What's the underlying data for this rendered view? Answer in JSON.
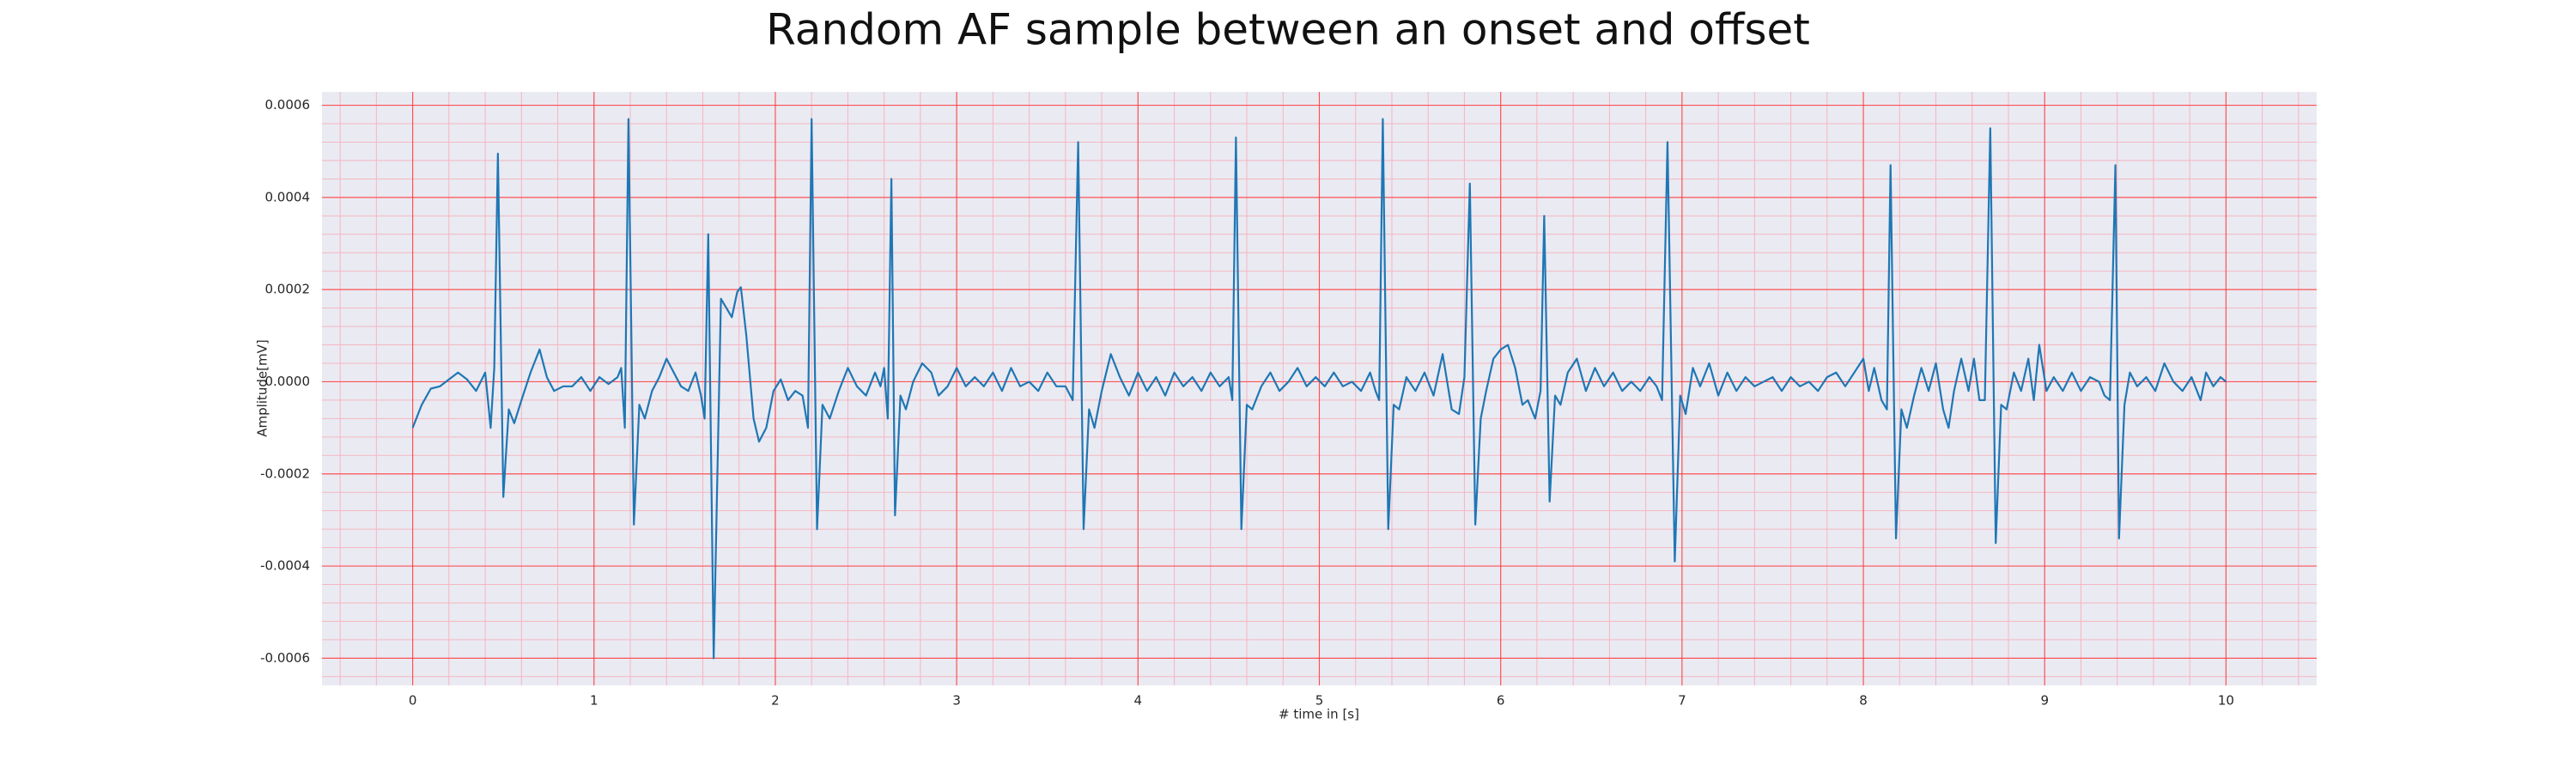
{
  "chart_data": {
    "type": "line",
    "title": "Random AF sample between an onset and offset",
    "xlabel": "# time in [s]",
    "ylabel": "Amplitude[mV]",
    "color": "#1f77b4",
    "grid": true,
    "xlim": [
      -0.5,
      10.5
    ],
    "ylim": [
      -0.000659,
      0.000629
    ],
    "xticks": [
      0,
      1,
      2,
      3,
      4,
      5,
      6,
      7,
      8,
      9,
      10
    ],
    "yticks": [
      -0.0006,
      -0.0004,
      -0.0002,
      {
        "value": 0,
        "label": "0.0000"
      },
      0.0002,
      0.0004,
      0.0006
    ],
    "x": [
      0.0,
      0.05,
      0.1,
      0.15,
      0.2,
      0.25,
      0.3,
      0.35,
      0.4,
      0.43,
      0.45,
      0.47,
      0.5,
      0.53,
      0.56,
      0.6,
      0.65,
      0.7,
      0.74,
      0.78,
      0.83,
      0.88,
      0.93,
      0.98,
      1.03,
      1.08,
      1.13,
      1.15,
      1.17,
      1.19,
      1.22,
      1.25,
      1.28,
      1.32,
      1.36,
      1.4,
      1.44,
      1.48,
      1.52,
      1.56,
      1.59,
      1.61,
      1.63,
      1.66,
      1.7,
      1.73,
      1.76,
      1.79,
      1.81,
      1.84,
      1.88,
      1.91,
      1.95,
      1.99,
      2.03,
      2.07,
      2.11,
      2.15,
      2.18,
      2.2,
      2.23,
      2.26,
      2.3,
      2.35,
      2.4,
      2.45,
      2.5,
      2.55,
      2.58,
      2.6,
      2.62,
      2.64,
      2.66,
      2.69,
      2.72,
      2.76,
      2.81,
      2.86,
      2.9,
      2.95,
      3.0,
      3.05,
      3.1,
      3.15,
      3.2,
      3.25,
      3.3,
      3.35,
      3.4,
      3.45,
      3.5,
      3.55,
      3.6,
      3.64,
      3.67,
      3.7,
      3.73,
      3.76,
      3.8,
      3.85,
      3.9,
      3.95,
      4.0,
      4.05,
      4.1,
      4.15,
      4.2,
      4.25,
      4.3,
      4.35,
      4.4,
      4.45,
      4.5,
      4.52,
      4.54,
      4.57,
      4.6,
      4.63,
      4.68,
      4.73,
      4.78,
      4.83,
      4.88,
      4.93,
      4.98,
      5.03,
      5.08,
      5.13,
      5.18,
      5.23,
      5.28,
      5.31,
      5.33,
      5.35,
      5.38,
      5.41,
      5.44,
      5.48,
      5.53,
      5.58,
      5.63,
      5.68,
      5.73,
      5.77,
      5.8,
      5.83,
      5.86,
      5.89,
      5.92,
      5.96,
      6.0,
      6.04,
      6.08,
      6.12,
      6.15,
      6.19,
      6.22,
      6.24,
      6.27,
      6.3,
      6.33,
      6.37,
      6.42,
      6.47,
      6.52,
      6.57,
      6.62,
      6.67,
      6.72,
      6.77,
      6.82,
      6.86,
      6.89,
      6.92,
      6.96,
      6.99,
      7.02,
      7.06,
      7.1,
      7.15,
      7.2,
      7.25,
      7.3,
      7.35,
      7.4,
      7.45,
      7.5,
      7.55,
      7.6,
      7.65,
      7.7,
      7.75,
      7.8,
      7.85,
      7.9,
      7.95,
      8.0,
      8.03,
      8.06,
      8.1,
      8.13,
      8.15,
      8.18,
      8.21,
      8.24,
      8.28,
      8.32,
      8.36,
      8.4,
      8.44,
      8.47,
      8.5,
      8.54,
      8.58,
      8.61,
      8.64,
      8.67,
      8.7,
      8.73,
      8.76,
      8.79,
      8.83,
      8.87,
      8.91,
      8.94,
      8.97,
      9.01,
      9.05,
      9.1,
      9.15,
      9.2,
      9.25,
      9.3,
      9.33,
      9.36,
      9.39,
      9.41,
      9.44,
      9.47,
      9.51,
      9.56,
      9.61,
      9.66,
      9.71,
      9.76,
      9.81,
      9.86,
      9.89,
      9.93,
      9.97,
      10.0
    ],
    "values": [
      -0.0001,
      -5e-05,
      -1.5e-05,
      -1e-05,
      5e-06,
      2e-05,
      5e-06,
      -2e-05,
      2e-05,
      -0.0001,
      3e-05,
      0.000495,
      -0.00025,
      -6e-05,
      -9e-05,
      -4e-05,
      2e-05,
      7e-05,
      1e-05,
      -2e-05,
      -1e-05,
      -1e-05,
      1e-05,
      -2e-05,
      1e-05,
      -5e-06,
      1e-05,
      3e-05,
      -0.0001,
      0.00057,
      -0.00031,
      -5e-05,
      -8e-05,
      -2e-05,
      1e-05,
      5e-05,
      2e-05,
      -1e-05,
      -2e-05,
      2e-05,
      -3e-05,
      -8e-05,
      0.00032,
      -0.0006,
      0.00018,
      0.00016,
      0.00014,
      0.000195,
      0.000205,
      0.0001,
      -8e-05,
      -0.00013,
      -0.0001,
      -2e-05,
      5e-06,
      -4e-05,
      -2e-05,
      -3e-05,
      -0.0001,
      0.00057,
      -0.00032,
      -5e-05,
      -8e-05,
      -2e-05,
      3e-05,
      -1e-05,
      -3e-05,
      2e-05,
      -1e-05,
      3e-05,
      -8e-05,
      0.00044,
      -0.00029,
      -3e-05,
      -6e-05,
      0,
      4e-05,
      2e-05,
      -3e-05,
      -1e-05,
      3e-05,
      -1e-05,
      1e-05,
      -1e-05,
      2e-05,
      -2e-05,
      3e-05,
      -1e-05,
      0,
      -2e-05,
      2e-05,
      -1e-05,
      -1e-05,
      -4e-05,
      0.00052,
      -0.00032,
      -6e-05,
      -0.0001,
      -2e-05,
      6e-05,
      1e-05,
      -3e-05,
      2e-05,
      -2e-05,
      1e-05,
      -3e-05,
      2e-05,
      -1e-05,
      1e-05,
      -2e-05,
      2e-05,
      -1e-05,
      1e-05,
      -4e-05,
      0.00053,
      -0.00032,
      -5e-05,
      -6e-05,
      -1e-05,
      2e-05,
      -2e-05,
      0,
      3e-05,
      -1e-05,
      1e-05,
      -1e-05,
      2e-05,
      -1e-05,
      0,
      -2e-05,
      2e-05,
      -2e-05,
      -4e-05,
      0.00057,
      -0.00032,
      -5e-05,
      -6e-05,
      1e-05,
      -2e-05,
      2e-05,
      -3e-05,
      6e-05,
      -6e-05,
      -7e-05,
      1e-05,
      0.00043,
      -0.00031,
      -8e-05,
      -2e-05,
      5e-05,
      7e-05,
      8e-05,
      3e-05,
      -5e-05,
      -4e-05,
      -8e-05,
      -2e-05,
      0.00036,
      -0.00026,
      -3e-05,
      -5e-05,
      2e-05,
      5e-05,
      -2e-05,
      3e-05,
      -1e-05,
      2e-05,
      -2e-05,
      0,
      -2e-05,
      1e-05,
      -1e-05,
      -4e-05,
      0.00052,
      -0.00039,
      -3e-05,
      -7e-05,
      3e-05,
      -1e-05,
      4e-05,
      -3e-05,
      2e-05,
      -2e-05,
      1e-05,
      -1e-05,
      0,
      1e-05,
      -2e-05,
      1e-05,
      -1e-05,
      0,
      -2e-05,
      1e-05,
      2e-05,
      -1e-05,
      2e-05,
      5e-05,
      -2e-05,
      3e-05,
      -4e-05,
      -6e-05,
      0.00047,
      -0.00034,
      -6e-05,
      -0.0001,
      -3e-05,
      3e-05,
      -2e-05,
      4e-05,
      -6e-05,
      -0.0001,
      -2e-05,
      5e-05,
      -2e-05,
      5e-05,
      -4e-05,
      -4e-05,
      0.00055,
      -0.00035,
      -5e-05,
      -6e-05,
      2e-05,
      -2e-05,
      5e-05,
      -4e-05,
      8e-05,
      -2e-05,
      1e-05,
      -2e-05,
      2e-05,
      -2e-05,
      1e-05,
      0,
      -3e-05,
      -4e-05,
      0.00047,
      -0.00034,
      -5e-05,
      2e-05,
      -1e-05,
      1e-05,
      -2e-05,
      4e-05,
      0,
      -2e-05,
      1e-05,
      -4e-05,
      2e-05,
      -1e-05,
      1e-05,
      0
    ]
  }
}
